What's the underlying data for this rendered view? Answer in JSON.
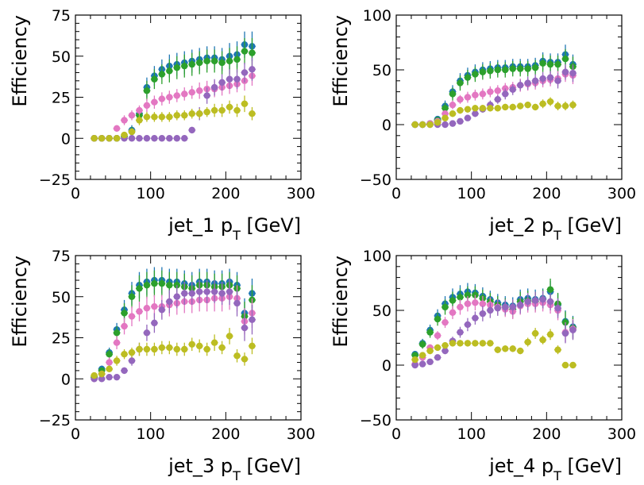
{
  "chart_data": [
    {
      "type": "scatter",
      "xlabel": "jet_1 p",
      "xlabel_sub": "T",
      "xlabel_unit": " [GeV]",
      "ylabel": "Efficiency",
      "xlim": [
        0,
        300
      ],
      "ylim": [
        -25,
        75
      ],
      "xticks": [
        0,
        100,
        200,
        300
      ],
      "yticks": [
        -25,
        0,
        25,
        50,
        75
      ],
      "grid": false,
      "x": [
        25,
        35,
        45,
        55,
        65,
        75,
        85,
        95,
        105,
        115,
        125,
        135,
        145,
        155,
        165,
        175,
        185,
        195,
        205,
        215,
        225,
        235
      ],
      "series": [
        {
          "color": "#1f77b4",
          "values": [
            0,
            0,
            0,
            0,
            1,
            5,
            15,
            31,
            38,
            42,
            44,
            45,
            46,
            47,
            48,
            49,
            49,
            48,
            50,
            51,
            57,
            56
          ],
          "err": [
            1,
            1,
            1,
            1,
            2,
            3,
            4,
            6,
            6,
            6,
            7,
            7,
            7,
            7,
            7,
            7,
            7,
            7,
            8,
            8,
            8,
            9
          ]
        },
        {
          "color": "#2ca02c",
          "values": [
            0,
            0,
            0,
            0,
            1,
            4,
            14,
            29,
            36,
            39,
            41,
            43,
            44,
            45,
            46,
            47,
            47,
            46,
            47,
            48,
            53,
            52
          ],
          "err": [
            1,
            1,
            1,
            1,
            2,
            3,
            4,
            6,
            6,
            6,
            7,
            7,
            7,
            7,
            7,
            7,
            7,
            7,
            8,
            8,
            8,
            9
          ]
        },
        {
          "color": "#e377c2",
          "values": [
            0,
            0,
            0,
            6,
            11,
            14,
            17,
            20,
            22,
            24,
            25,
            26,
            27,
            28,
            29,
            30,
            30,
            31,
            32,
            33,
            35,
            38
          ],
          "err": [
            1,
            1,
            1,
            2,
            3,
            3,
            3,
            4,
            4,
            4,
            4,
            4,
            4,
            4,
            5,
            5,
            5,
            5,
            5,
            5,
            6,
            6
          ]
        },
        {
          "color": "#9467bd",
          "values": [
            0,
            0,
            0,
            0,
            0,
            0,
            0,
            0,
            0,
            0,
            0,
            0,
            0,
            5,
            15,
            26,
            31,
            34,
            36,
            36,
            40,
            42
          ],
          "err": [
            0,
            0,
            0,
            0,
            0,
            0,
            0,
            0,
            0,
            0,
            0,
            0,
            0,
            2,
            4,
            5,
            5,
            5,
            6,
            6,
            6,
            7
          ]
        },
        {
          "color": "#bcbd22",
          "values": [
            0,
            0,
            0,
            0,
            2,
            4,
            11,
            13,
            13,
            13,
            13,
            14,
            14,
            15,
            15,
            16,
            17,
            17,
            19,
            17,
            21,
            15
          ],
          "err": [
            1,
            1,
            1,
            1,
            2,
            2,
            3,
            3,
            3,
            3,
            3,
            3,
            3,
            3,
            3,
            3,
            4,
            4,
            4,
            4,
            5,
            4
          ]
        }
      ]
    },
    {
      "type": "scatter",
      "xlabel": "jet_2 p",
      "xlabel_sub": "T",
      "xlabel_unit": " [GeV]",
      "ylabel": "Efficiency",
      "xlim": [
        0,
        300
      ],
      "ylim": [
        -50,
        100
      ],
      "xticks": [
        0,
        100,
        200,
        300
      ],
      "yticks": [
        -50,
        0,
        50,
        100
      ],
      "grid": false,
      "x": [
        25,
        35,
        45,
        55,
        65,
        75,
        85,
        95,
        105,
        115,
        125,
        135,
        145,
        155,
        165,
        175,
        185,
        195,
        205,
        215,
        225,
        235
      ],
      "series": [
        {
          "color": "#1f77b4",
          "values": [
            0,
            0,
            1,
            5,
            17,
            30,
            40,
            45,
            48,
            50,
            51,
            52,
            52,
            53,
            53,
            53,
            54,
            58,
            57,
            57,
            64,
            55
          ],
          "err": [
            1,
            1,
            2,
            3,
            5,
            6,
            7,
            7,
            7,
            7,
            7,
            7,
            7,
            7,
            7,
            7,
            7,
            8,
            8,
            8,
            9,
            9
          ]
        },
        {
          "color": "#2ca02c",
          "values": [
            0,
            0,
            1,
            4,
            15,
            28,
            38,
            43,
            46,
            48,
            49,
            50,
            50,
            51,
            51,
            51,
            52,
            56,
            55,
            55,
            60,
            53
          ],
          "err": [
            1,
            1,
            2,
            3,
            5,
            6,
            7,
            7,
            7,
            7,
            7,
            7,
            7,
            7,
            7,
            7,
            7,
            8,
            8,
            8,
            9,
            9
          ]
        },
        {
          "color": "#e377c2",
          "values": [
            0,
            0,
            1,
            3,
            10,
            18,
            23,
            25,
            27,
            28,
            30,
            31,
            33,
            34,
            36,
            37,
            38,
            40,
            41,
            42,
            46,
            45
          ],
          "err": [
            1,
            1,
            1,
            2,
            3,
            4,
            4,
            5,
            5,
            5,
            5,
            5,
            5,
            5,
            6,
            6,
            6,
            6,
            6,
            7,
            7,
            8
          ]
        },
        {
          "color": "#9467bd",
          "values": [
            0,
            0,
            0,
            0,
            0,
            1,
            3,
            6,
            10,
            14,
            18,
            23,
            28,
            32,
            36,
            38,
            40,
            42,
            43,
            40,
            48,
            47
          ],
          "err": [
            0,
            0,
            0,
            0,
            1,
            1,
            2,
            2,
            3,
            3,
            4,
            4,
            5,
            5,
            5,
            6,
            6,
            6,
            6,
            7,
            7,
            8
          ]
        },
        {
          "color": "#bcbd22",
          "values": [
            0,
            0,
            0,
            2,
            6,
            10,
            13,
            14,
            15,
            15,
            15,
            15,
            16,
            16,
            17,
            18,
            16,
            19,
            21,
            17,
            17,
            18
          ],
          "err": [
            1,
            1,
            1,
            2,
            3,
            3,
            3,
            3,
            3,
            3,
            3,
            3,
            3,
            3,
            3,
            3,
            3,
            4,
            4,
            4,
            4,
            4
          ]
        }
      ]
    },
    {
      "type": "scatter",
      "xlabel": "jet_3 p",
      "xlabel_sub": "T",
      "xlabel_unit": " [GeV]",
      "ylabel": "Efficiency",
      "xlim": [
        0,
        300
      ],
      "ylim": [
        -25,
        75
      ],
      "xticks": [
        0,
        100,
        200,
        300
      ],
      "yticks": [
        -25,
        0,
        25,
        50,
        75
      ],
      "grid": false,
      "x": [
        25,
        35,
        45,
        55,
        65,
        75,
        85,
        95,
        105,
        115,
        125,
        135,
        145,
        155,
        165,
        175,
        185,
        195,
        205,
        215,
        225,
        235
      ],
      "series": [
        {
          "color": "#1f77b4",
          "values": [
            1,
            6,
            16,
            30,
            42,
            52,
            57,
            59,
            60,
            60,
            59,
            59,
            58,
            57,
            59,
            59,
            58,
            58,
            59,
            57,
            40,
            52
          ],
          "err": [
            1,
            2,
            3,
            4,
            6,
            7,
            8,
            8,
            8,
            8,
            8,
            8,
            8,
            8,
            8,
            8,
            8,
            8,
            8,
            8,
            9,
            9
          ]
        },
        {
          "color": "#2ca02c",
          "values": [
            1,
            5,
            15,
            28,
            40,
            50,
            55,
            57,
            58,
            58,
            57,
            57,
            56,
            55,
            57,
            57,
            56,
            56,
            57,
            55,
            38,
            48
          ],
          "err": [
            1,
            2,
            3,
            4,
            6,
            7,
            8,
            8,
            8,
            8,
            8,
            8,
            8,
            8,
            8,
            8,
            8,
            8,
            8,
            8,
            9,
            9
          ]
        },
        {
          "color": "#e377c2",
          "values": [
            0,
            3,
            10,
            22,
            32,
            38,
            41,
            43,
            44,
            44,
            45,
            46,
            47,
            47,
            48,
            48,
            49,
            49,
            50,
            49,
            35,
            40
          ],
          "err": [
            1,
            2,
            3,
            4,
            5,
            6,
            6,
            7,
            7,
            7,
            7,
            7,
            7,
            7,
            7,
            7,
            8,
            8,
            8,
            8,
            8,
            9
          ]
        },
        {
          "color": "#9467bd",
          "values": [
            0,
            0,
            1,
            1,
            5,
            11,
            18,
            28,
            34,
            42,
            47,
            50,
            52,
            52,
            53,
            53,
            53,
            52,
            53,
            46,
            31,
            36
          ],
          "err": [
            0,
            0,
            1,
            1,
            2,
            3,
            4,
            5,
            6,
            6,
            7,
            7,
            7,
            7,
            7,
            7,
            7,
            7,
            8,
            8,
            8,
            9
          ]
        },
        {
          "color": "#bcbd22",
          "values": [
            2,
            3,
            6,
            11,
            15,
            16,
            18,
            18,
            18,
            19,
            19,
            18,
            18,
            21,
            20,
            18,
            22,
            19,
            26,
            14,
            12,
            20
          ],
          "err": [
            1,
            2,
            2,
            3,
            3,
            3,
            4,
            4,
            4,
            4,
            4,
            4,
            4,
            4,
            4,
            4,
            5,
            4,
            5,
            4,
            4,
            5
          ]
        }
      ]
    },
    {
      "type": "scatter",
      "xlabel": "jet_4 p",
      "xlabel_sub": "T",
      "xlabel_unit": " [GeV]",
      "ylabel": "Efficiency",
      "xlim": [
        0,
        300
      ],
      "ylim": [
        -50,
        100
      ],
      "xticks": [
        0,
        100,
        200,
        300
      ],
      "yticks": [
        -50,
        0,
        50,
        100
      ],
      "grid": false,
      "x": [
        25,
        35,
        45,
        55,
        65,
        75,
        85,
        95,
        105,
        115,
        125,
        135,
        145,
        155,
        165,
        175,
        185,
        195,
        205,
        215,
        225,
        235
      ],
      "series": [
        {
          "color": "#1f77b4",
          "values": [
            10,
            20,
            32,
            45,
            56,
            62,
            65,
            67,
            66,
            63,
            60,
            57,
            55,
            54,
            60,
            61,
            60,
            61,
            67,
            55,
            40,
            35
          ],
          "err": [
            3,
            4,
            5,
            6,
            7,
            8,
            8,
            8,
            8,
            8,
            8,
            8,
            8,
            8,
            9,
            9,
            9,
            9,
            10,
            10,
            10,
            10
          ]
        },
        {
          "color": "#2ca02c",
          "values": [
            9,
            19,
            30,
            42,
            53,
            59,
            62,
            64,
            64,
            61,
            58,
            55,
            53,
            51,
            58,
            59,
            58,
            60,
            69,
            56,
            39,
            34
          ],
          "err": [
            3,
            4,
            5,
            6,
            7,
            8,
            8,
            8,
            8,
            8,
            8,
            8,
            8,
            8,
            9,
            9,
            9,
            9,
            10,
            10,
            10,
            10
          ]
        },
        {
          "color": "#e377c2",
          "values": [
            1,
            7,
            16,
            27,
            39,
            48,
            53,
            56,
            57,
            56,
            55,
            53,
            51,
            49,
            54,
            56,
            56,
            57,
            55,
            50,
            30,
            33
          ],
          "err": [
            1,
            2,
            3,
            4,
            5,
            6,
            7,
            7,
            7,
            7,
            7,
            7,
            7,
            7,
            8,
            8,
            8,
            8,
            8,
            9,
            9,
            9
          ]
        },
        {
          "color": "#9467bd",
          "values": [
            0,
            1,
            3,
            7,
            13,
            22,
            30,
            37,
            43,
            47,
            50,
            52,
            53,
            53,
            55,
            58,
            59,
            60,
            58,
            52,
            29,
            32
          ],
          "err": [
            0,
            1,
            2,
            2,
            3,
            4,
            5,
            6,
            6,
            7,
            7,
            7,
            7,
            7,
            8,
            8,
            8,
            8,
            8,
            9,
            9,
            9
          ]
        },
        {
          "color": "#bcbd22",
          "values": [
            5,
            9,
            13,
            16,
            18,
            20,
            20,
            20,
            20,
            20,
            20,
            14,
            15,
            15,
            13,
            21,
            29,
            23,
            28,
            14,
            0,
            0
          ],
          "err": [
            2,
            2,
            3,
            3,
            3,
            3,
            3,
            3,
            3,
            3,
            3,
            3,
            3,
            3,
            3,
            4,
            5,
            4,
            5,
            4,
            1,
            1
          ]
        }
      ]
    }
  ]
}
